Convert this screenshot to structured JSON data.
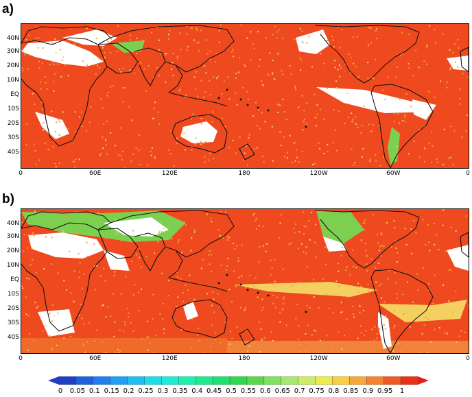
{
  "panels": [
    {
      "label": "a)"
    },
    {
      "label": "b)"
    }
  ],
  "lat_labels": [
    "40N",
    "30N",
    "20N",
    "10N",
    "EQ",
    "10S",
    "20S",
    "30S",
    "40S"
  ],
  "lon_labels": [
    "0",
    "60E",
    "120E",
    "180",
    "120W",
    "60W",
    "0"
  ],
  "colorbar": {
    "labels": [
      "0",
      "0.05",
      "0.1",
      "0.15",
      "0.2",
      "0.25",
      "0.3",
      "0.35",
      "0.4",
      "0.45",
      "0.5",
      "0.55",
      "0.6",
      "0.65",
      "0.7",
      "0.75",
      "0.8",
      "0.85",
      "0.9",
      "0.95",
      "1"
    ],
    "colors": [
      "#1f3fc6",
      "#1f5fe0",
      "#1f7ff0",
      "#1f9ff8",
      "#1fbff0",
      "#1fdce8",
      "#21ead2",
      "#1ff0b0",
      "#1fe890",
      "#1fe070",
      "#30d84f",
      "#5ad84a",
      "#80e060",
      "#a8e870",
      "#ccec6a",
      "#ecec50",
      "#f8d046",
      "#f6a83a",
      "#f48432",
      "#ef5a24",
      "#e83218"
    ],
    "under_color": "#1f3fc6",
    "over_color": "#e02020"
  },
  "colors": {
    "ocean_high": "#ef4a1f",
    "mid": "#f0a040",
    "light": "#f4d060",
    "green": "#7cd050",
    "white": "#ffffff",
    "coast": "#111111"
  }
}
